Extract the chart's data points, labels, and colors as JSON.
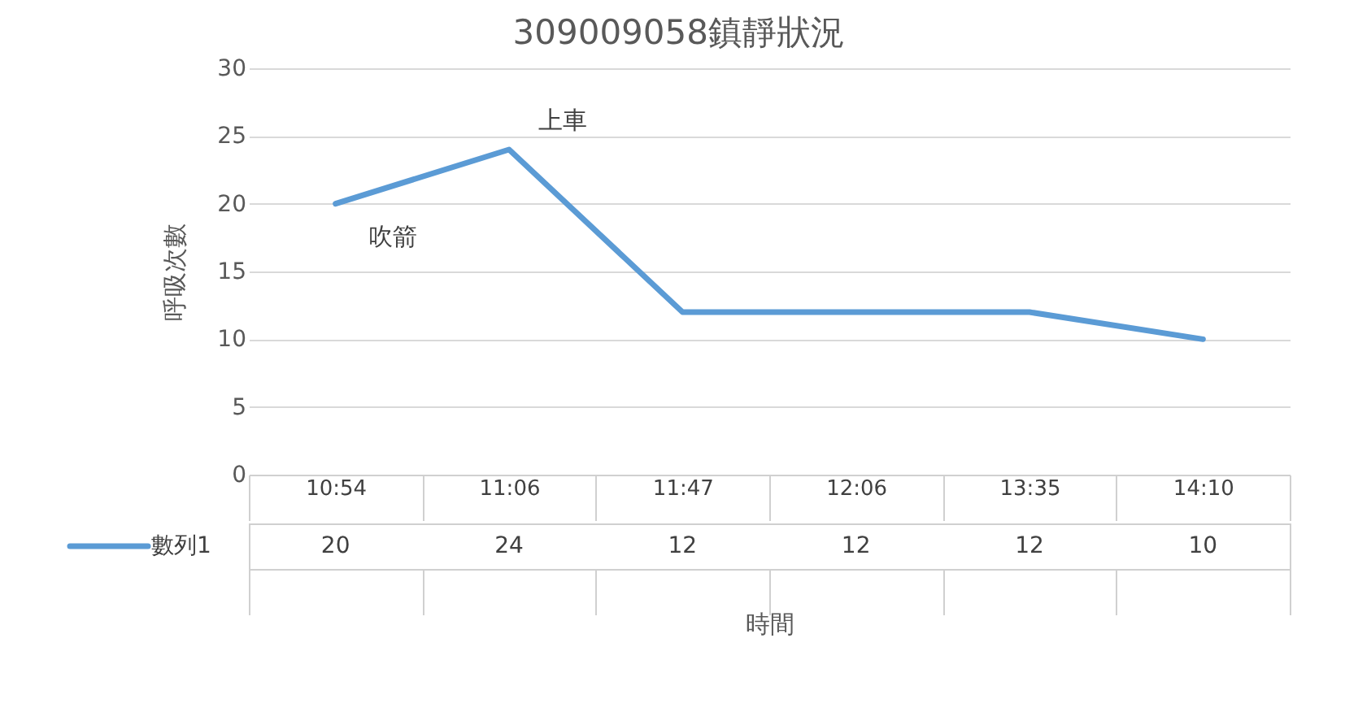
{
  "chart_data": {
    "type": "line",
    "title": "309009058鎮靜狀況",
    "ylabel": "呼吸次數",
    "xlabel": "時間",
    "categories": [
      "10:54",
      "11:06",
      "11:47",
      "12:06",
      "13:35",
      "14:10"
    ],
    "series": [
      {
        "name": "數列1",
        "color": "#5b9bd5",
        "values": [
          20,
          24,
          12,
          12,
          12,
          10
        ]
      }
    ],
    "ylim": [
      0,
      30
    ],
    "yticks": [
      0,
      5,
      10,
      15,
      20,
      25,
      30
    ],
    "grid": "y",
    "legend": "bottom",
    "data_labels": true,
    "line_style": "solid",
    "marker": "none",
    "annotations": [
      {
        "text": "吹箭",
        "x": "10:54",
        "y": 20
      },
      {
        "text": "上車",
        "x": "11:06",
        "y": 24
      }
    ]
  }
}
